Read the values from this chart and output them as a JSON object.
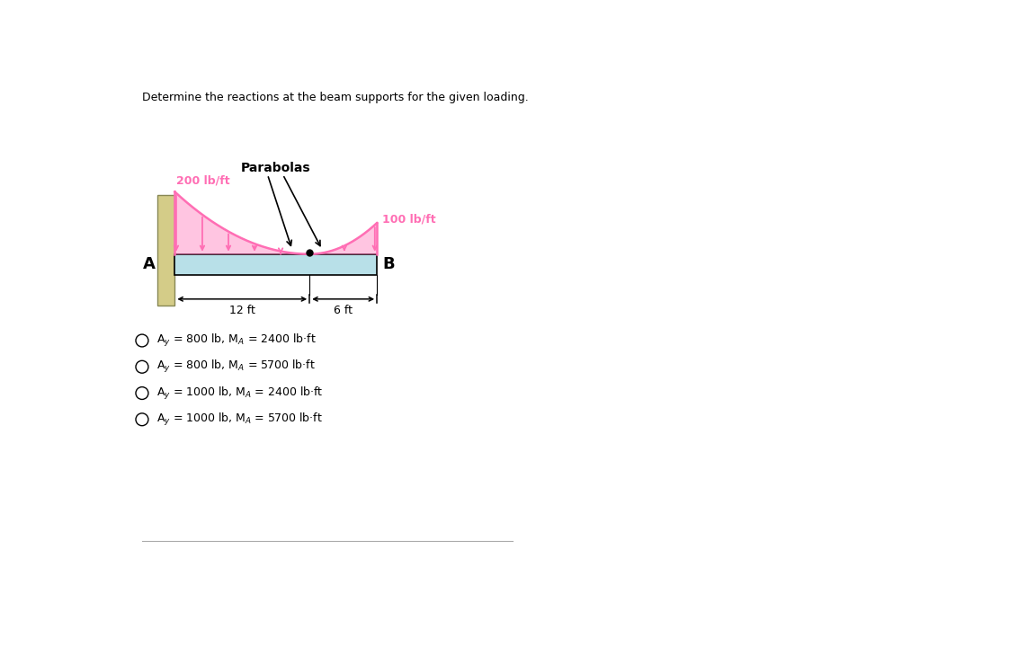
{
  "title": "Determine the reactions at the beam supports for the given loading.",
  "title_fontsize": 9,
  "beam_color": "#b8e0e8",
  "wall_color": "#d4cc88",
  "load_color": "#ff6eb4",
  "label_200": "200 lb/ft",
  "label_100": "100 lb/ft",
  "label_parabolas": "Parabolas",
  "label_12ft": "12 ft",
  "label_6ft": "6 ft",
  "label_A": "A",
  "label_B": "B",
  "option1": "A$_y$ = 800 lb, M$_A$ = 2400 lb·ft",
  "option2": "A$_y$ = 800 lb, M$_A$ = 5700 lb·ft",
  "option3": "A$_y$ = 1000 lb, M$_A$ = 2400 lb·ft",
  "option4": "A$_y$ = 1000 lb, M$_A$ = 5700 lb·ft"
}
